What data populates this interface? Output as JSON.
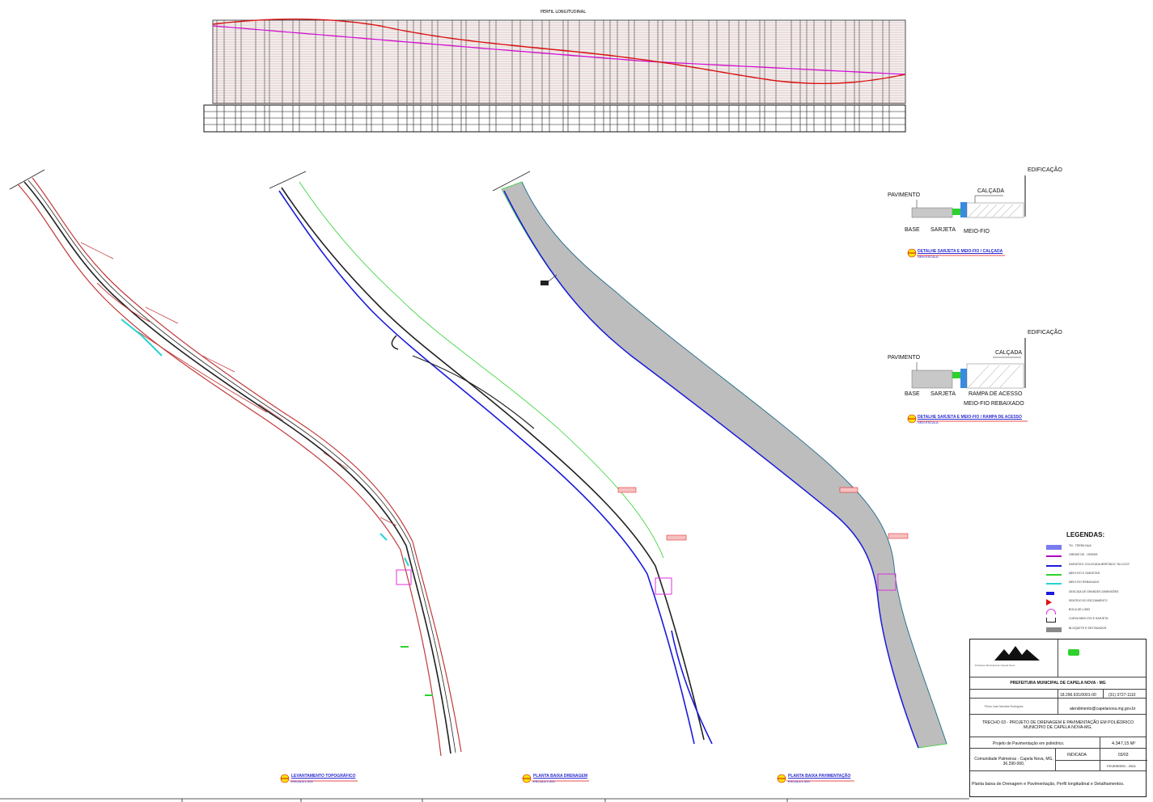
{
  "profile": {
    "title": "PERFIL LONGITUDINAL"
  },
  "details": {
    "d1": {
      "edificacao": "EDIFICAÇÃO",
      "calcada": "CALÇADA",
      "pavimento": "PAVIMENTO",
      "base": "BASE",
      "sarjeta": "SARJETA",
      "meio_fio": "MEIO-FIO",
      "caption": "DETALHE SARJETA E MEIO-FIO / CALÇADA",
      "scale": "SEM ESCALA"
    },
    "d2": {
      "edificacao": "EDIFICAÇÃO",
      "calcada": "CALÇADA",
      "pavimento": "PAVIMENTO",
      "base": "BASE",
      "sarjeta": "SARJETA",
      "rampa": "RAMPA DE ACESSO",
      "meio_fio": "MEIO-FIO REBAIXADO",
      "caption": "DETALHE SARJETA E MEIO-FIO / RAMPA DE ACESSO",
      "scale": "SEM ESCALA"
    }
  },
  "plans": {
    "p1": {
      "caption": "LEVANTAMENTO TOPOGRÁFICO",
      "scale": "ESCALA 1:500"
    },
    "p2": {
      "caption": "PLANTA BAIXA DRENAGEM",
      "scale": "ESCALA 1:500"
    },
    "p3": {
      "caption": "PLANTA BAIXA PAVIMENTAÇÃO",
      "scale": "ESCALA 1:500"
    }
  },
  "legend": {
    "title": "LEGENDAS:",
    "items": [
      {
        "label": "TN - TERRA NUA",
        "color": "#7b7bf0",
        "kind": "fill"
      },
      {
        "label": "GREIDE DE - GREIDE",
        "color": "#b000c0",
        "kind": "line"
      },
      {
        "label": "SARJETA E COLOCADA BREITADO \"IN LOCO\"",
        "color": "#1a1adc",
        "kind": "line"
      },
      {
        "label": "MEIO-FIO E SARJETAS",
        "color": "#2ed12e",
        "kind": "line"
      },
      {
        "label": "MEIO-FIO REBAIXADO",
        "color": "#27d3d3",
        "kind": "line"
      },
      {
        "label": "DESCIDA DE GRANDES DIMENSÕES",
        "color": "#1a1adc",
        "kind": "box"
      },
      {
        "label": "SENTIDO DO ESCOAMENTO",
        "color": "#e01010",
        "kind": "tri"
      },
      {
        "label": "BOCA DE LOBO",
        "color": "#e030e0",
        "kind": "arc"
      },
      {
        "label": "CURVA MEIO-FIO E SARJETA",
        "color": "#222222",
        "kind": "bracket"
      },
      {
        "label": "BLOQUETE E SEXTAVADOS",
        "color": "#8a8a8a",
        "kind": "fill"
      }
    ]
  },
  "titleblock": {
    "company": "Prefeitura Municipal de Capela Nova",
    "municipality": "PREFEITURA MUNICIPAL DE CAPELA NOVA - MG",
    "cnpj": "18.296.931/0001-00",
    "phone": "(31) 3727-1110",
    "email": "atendimento@capelanova.mg.gov.br",
    "project": "TRECHO 03 - PROJETO DE DRENAGEM E PAVIMENTAÇÃO EM POLIÉDRICO MUNICÍPIO DE CAPELA NOVA-MG.",
    "description": "Projeto de Pavimentação em poliédrico.",
    "area": "4.347,15 M²",
    "address": "Comunidade Palmeiras - Capela Nova, MG, 36.290-000.",
    "scale": "INDICADA",
    "sheet": "03/03",
    "date": "FEVEREIRO - 2024",
    "content": "Planta baixa de Drenagem e Pavimentação, Perfil longitudinal e Detalhamentos.",
    "responsible": "Plínio José Mendes Rodrigues"
  }
}
